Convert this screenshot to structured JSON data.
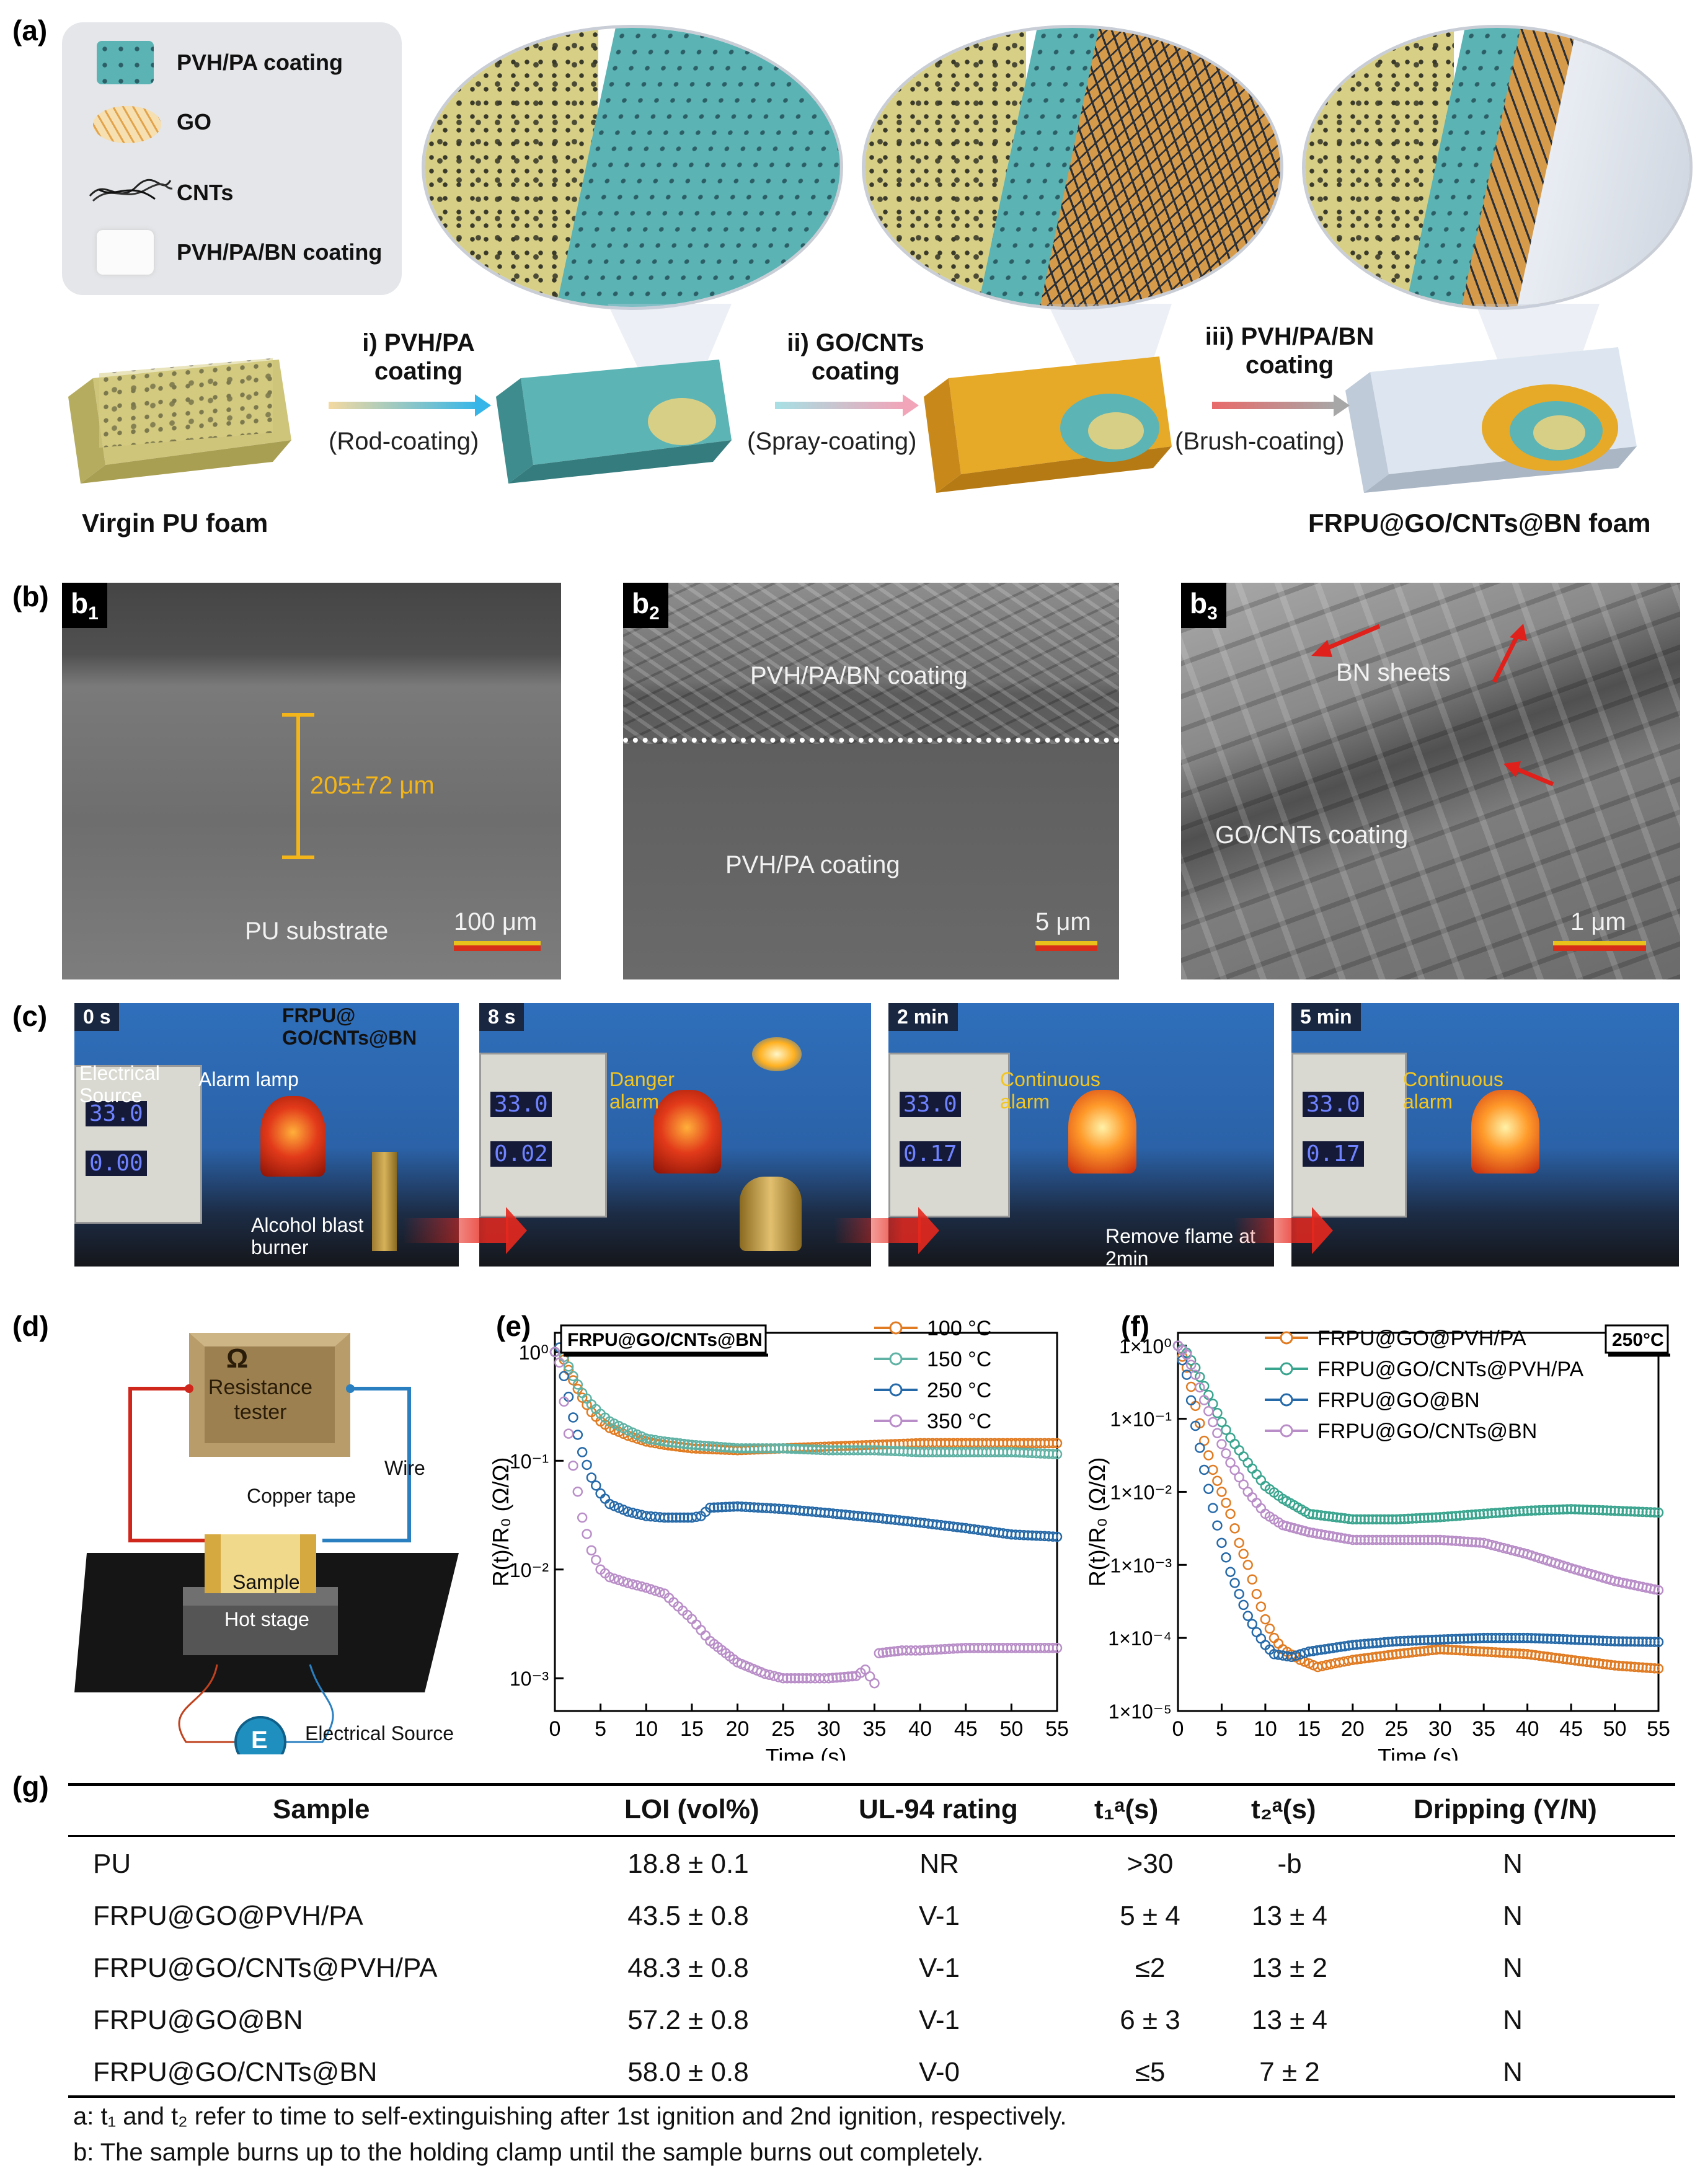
{
  "panel_labels": {
    "a": "(a)",
    "b": "(b)",
    "c": "(c)",
    "d": "(d)",
    "e": "(e)",
    "f": "(f)",
    "g": "(g)"
  },
  "panel_a": {
    "legend": [
      {
        "label": "PVH/PA coating",
        "icon": "teal-cube-icon"
      },
      {
        "label": "GO",
        "icon": "hexagon-sheet-icon"
      },
      {
        "label": "CNTs",
        "icon": "tube-bundle-icon"
      },
      {
        "label": "PVH/PA/BN coating",
        "icon": "white-cube-icon"
      }
    ],
    "steps": [
      {
        "title": "i) PVH/PA coating",
        "method": "(Rod-coating)"
      },
      {
        "title": "ii) GO/CNTs coating",
        "method": "(Spray-coating)"
      },
      {
        "title": "iii) PVH/PA/BN coating",
        "method": "(Brush-coating)"
      }
    ],
    "start_label": "Virgin PU foam",
    "end_label": "FRPU@GO/CNTs@BN foam",
    "colors": {
      "foam": "#d8cf86",
      "teal": "#5bb3b4",
      "gold": "#e7a928",
      "white": "#e3eaf2"
    }
  },
  "panel_b": [
    {
      "tag": "b",
      "sub": "1",
      "labels": [
        "205±72 μm",
        "PU substrate"
      ],
      "scale": "100 μm"
    },
    {
      "tag": "b",
      "sub": "2",
      "labels": [
        "PVH/PA/BN coating",
        "PVH/PA coating"
      ],
      "scale": "5 μm"
    },
    {
      "tag": "b",
      "sub": "3",
      "labels": [
        "BN sheets",
        "GO/CNTs coating"
      ],
      "scale": "1 μm"
    }
  ],
  "panel_c": {
    "frames": [
      {
        "time": "0 s",
        "labels": [
          "Electrical Source",
          "Alarm lamp",
          "Alcohol blast burner"
        ],
        "lcd": [
          "33.0",
          "0.00"
        ]
      },
      {
        "time": "8 s",
        "labels": [
          "Danger alarm"
        ],
        "lcd": [
          "33.0",
          "0.02"
        ]
      },
      {
        "time": "2 min",
        "labels": [
          "Continuous alarm",
          "Remove flame at 2min"
        ],
        "lcd": [
          "33.0",
          "0.17"
        ]
      },
      {
        "time": "5 min",
        "labels": [
          "Continuous alarm"
        ],
        "lcd": [
          "33.0",
          "0.17"
        ]
      }
    ],
    "sample_label": "FRPU@ GO/CNTs@BN"
  },
  "panel_d": {
    "tester": "Resistance tester",
    "omega": "Ω",
    "wire": "Wire",
    "copper": "Copper tape",
    "sample": "Sample",
    "stage": "Hot stage",
    "source_symbol": "E",
    "source": "Electrical Source"
  },
  "chart_data": [
    {
      "type": "scatter",
      "panel": "e",
      "title": "FRPU@GO/CNTs@BN",
      "xlabel": "Time (s)",
      "ylabel": "R(t)/R₀ (Ω/Ω)",
      "xlim": [
        0,
        55
      ],
      "ylim": [
        0.0005,
        1.5
      ],
      "yscale": "log",
      "xticks": [
        "0",
        "5",
        "10",
        "15",
        "20",
        "25",
        "30",
        "35",
        "40",
        "45",
        "50",
        "55"
      ],
      "yticks": [
        "10⁰",
        "10⁻¹",
        "10⁻²",
        "10⁻³"
      ],
      "legend_position": "top-right",
      "series": [
        {
          "name": "100 °C",
          "color": "#e07b22",
          "points": [
            [
              0,
              1.0
            ],
            [
              0.5,
              1.1
            ],
            [
              1,
              0.85
            ],
            [
              2,
              0.55
            ],
            [
              3,
              0.38
            ],
            [
              4,
              0.28
            ],
            [
              5,
              0.23
            ],
            [
              6,
              0.2
            ],
            [
              8,
              0.17
            ],
            [
              10,
              0.15
            ],
            [
              12,
              0.14
            ],
            [
              15,
              0.13
            ],
            [
              20,
              0.125
            ],
            [
              25,
              0.13
            ],
            [
              30,
              0.135
            ],
            [
              35,
              0.14
            ],
            [
              40,
              0.145
            ],
            [
              45,
              0.145
            ],
            [
              50,
              0.145
            ],
            [
              55,
              0.145
            ]
          ]
        },
        {
          "name": "150 °C",
          "color": "#5fb2a4",
          "points": [
            [
              0,
              1.0
            ],
            [
              0.5,
              1.1
            ],
            [
              1,
              0.9
            ],
            [
              2,
              0.6
            ],
            [
              3,
              0.42
            ],
            [
              4,
              0.33
            ],
            [
              5,
              0.27
            ],
            [
              6,
              0.23
            ],
            [
              8,
              0.19
            ],
            [
              10,
              0.16
            ],
            [
              12,
              0.15
            ],
            [
              15,
              0.14
            ],
            [
              20,
              0.13
            ],
            [
              25,
              0.13
            ],
            [
              30,
              0.125
            ],
            [
              35,
              0.125
            ],
            [
              40,
              0.12
            ],
            [
              45,
              0.12
            ],
            [
              50,
              0.12
            ],
            [
              55,
              0.115
            ]
          ]
        },
        {
          "name": "250 °C",
          "color": "#2569a8",
          "points": [
            [
              0,
              1.0
            ],
            [
              0.5,
              1.1
            ],
            [
              1,
              0.6
            ],
            [
              2,
              0.25
            ],
            [
              3,
              0.12
            ],
            [
              4,
              0.07
            ],
            [
              5,
              0.05
            ],
            [
              6,
              0.04
            ],
            [
              8,
              0.034
            ],
            [
              10,
              0.031
            ],
            [
              12,
              0.03
            ],
            [
              15,
              0.03
            ],
            [
              16,
              0.031
            ],
            [
              17,
              0.037
            ],
            [
              20,
              0.038
            ],
            [
              25,
              0.036
            ],
            [
              30,
              0.033
            ],
            [
              35,
              0.03
            ],
            [
              40,
              0.027
            ],
            [
              45,
              0.024
            ],
            [
              50,
              0.021
            ],
            [
              55,
              0.02
            ]
          ]
        },
        {
          "name": "350 °C",
          "color": "#b98ec8",
          "points": [
            [
              0,
              1.0
            ],
            [
              0.5,
              0.8
            ],
            [
              1,
              0.35
            ],
            [
              2,
              0.09
            ],
            [
              3,
              0.03
            ],
            [
              4,
              0.015
            ],
            [
              5,
              0.01
            ],
            [
              6,
              0.0085
            ],
            [
              8,
              0.0075
            ],
            [
              10,
              0.0068
            ],
            [
              12,
              0.006
            ],
            [
              13,
              0.005
            ],
            [
              15,
              0.0035
            ],
            [
              17,
              0.0022
            ],
            [
              20,
              0.0014
            ],
            [
              23,
              0.0011
            ],
            [
              25,
              0.001
            ],
            [
              28,
              0.001
            ],
            [
              30,
              0.001
            ],
            [
              33,
              0.00105
            ],
            [
              34,
              0.0012
            ],
            [
              35,
              0.0009
            ],
            [
              35.5,
              0.0017
            ],
            [
              38,
              0.0018
            ],
            [
              40,
              0.0018
            ],
            [
              45,
              0.0019
            ],
            [
              50,
              0.0019
            ],
            [
              55,
              0.0019
            ]
          ]
        }
      ]
    },
    {
      "type": "scatter",
      "panel": "f",
      "title": "250°C",
      "xlabel": "Time (s)",
      "ylabel": "R(t)/R₀ (Ω/Ω)",
      "xlim": [
        0,
        55
      ],
      "ylim": [
        1e-05,
        1.5
      ],
      "yscale": "log",
      "xticks": [
        "0",
        "5",
        "10",
        "15",
        "20",
        "25",
        "30",
        "35",
        "40",
        "45",
        "50",
        "55"
      ],
      "yticks": [
        "1×10⁰",
        "1×10⁻¹",
        "1×10⁻²",
        "1×10⁻³",
        "1×10⁻⁴",
        "1×10⁻⁵"
      ],
      "legend_position": "top-left",
      "series": [
        {
          "name": "FRPU@GO@PVH/PA",
          "color": "#e07b22",
          "points": [
            [
              0,
              1.0
            ],
            [
              1,
              0.5
            ],
            [
              2,
              0.15
            ],
            [
              3,
              0.05
            ],
            [
              4,
              0.02
            ],
            [
              5,
              0.01
            ],
            [
              6,
              0.005
            ],
            [
              7,
              0.002
            ],
            [
              8,
              0.001
            ],
            [
              9,
              0.0004
            ],
            [
              10,
              0.00018
            ],
            [
              11,
              0.0001
            ],
            [
              12,
              7e-05
            ],
            [
              14,
              5e-05
            ],
            [
              16,
              4e-05
            ],
            [
              18,
              4.5e-05
            ],
            [
              20,
              5e-05
            ],
            [
              25,
              6e-05
            ],
            [
              30,
              7e-05
            ],
            [
              35,
              6.5e-05
            ],
            [
              40,
              6e-05
            ],
            [
              45,
              5e-05
            ],
            [
              50,
              4.2e-05
            ],
            [
              55,
              3.8e-05
            ]
          ]
        },
        {
          "name": "FRPU@GO/CNTs@PVH/PA",
          "color": "#3aa58f",
          "points": [
            [
              0,
              1.0
            ],
            [
              1,
              0.8
            ],
            [
              2,
              0.5
            ],
            [
              3,
              0.28
            ],
            [
              4,
              0.16
            ],
            [
              5,
              0.09
            ],
            [
              6,
              0.055
            ],
            [
              8,
              0.025
            ],
            [
              10,
              0.012
            ],
            [
              12,
              0.008
            ],
            [
              15,
              0.005
            ],
            [
              20,
              0.0042
            ],
            [
              25,
              0.0042
            ],
            [
              30,
              0.0045
            ],
            [
              35,
              0.005
            ],
            [
              40,
              0.0055
            ],
            [
              45,
              0.0058
            ],
            [
              50,
              0.0055
            ],
            [
              55,
              0.0052
            ]
          ]
        },
        {
          "name": "FRPU@GO@BN",
          "color": "#2569a8",
          "points": [
            [
              0,
              1.0
            ],
            [
              1,
              0.4
            ],
            [
              2,
              0.08
            ],
            [
              3,
              0.02
            ],
            [
              4,
              0.006
            ],
            [
              5,
              0.002
            ],
            [
              6,
              0.0008
            ],
            [
              7,
              0.0004
            ],
            [
              8,
              0.0002
            ],
            [
              9,
              0.00012
            ],
            [
              10,
              8e-05
            ],
            [
              11,
              6e-05
            ],
            [
              13,
              5.5e-05
            ],
            [
              15,
              6.5e-05
            ],
            [
              20,
              8e-05
            ],
            [
              25,
              9e-05
            ],
            [
              30,
              9.5e-05
            ],
            [
              35,
              0.0001
            ],
            [
              40,
              0.0001
            ],
            [
              45,
              9.5e-05
            ],
            [
              50,
              9e-05
            ],
            [
              55,
              8.8e-05
            ]
          ]
        },
        {
          "name": "FRPU@GO/CNTs@BN",
          "color": "#b98ec8",
          "points": [
            [
              0,
              1.0
            ],
            [
              1,
              0.75
            ],
            [
              2,
              0.4
            ],
            [
              3,
              0.18
            ],
            [
              4,
              0.09
            ],
            [
              5,
              0.045
            ],
            [
              6,
              0.025
            ],
            [
              8,
              0.01
            ],
            [
              10,
              0.005
            ],
            [
              12,
              0.0035
            ],
            [
              15,
              0.0028
            ],
            [
              20,
              0.0022
            ],
            [
              25,
              0.0022
            ],
            [
              30,
              0.0022
            ],
            [
              35,
              0.002
            ],
            [
              40,
              0.0014
            ],
            [
              45,
              0.0009
            ],
            [
              50,
              0.0006
            ],
            [
              55,
              0.00045
            ]
          ]
        }
      ]
    }
  ],
  "panel_g": {
    "headers": [
      "Sample",
      "LOI (vol%)",
      "UL-94 rating",
      "t₁ᵃ(s)",
      "t₂ᵃ(s)",
      "Dripping (Y/N)"
    ],
    "rows": [
      [
        "PU",
        "18.8 ± 0.1",
        "NR",
        ">30",
        "-b",
        "N"
      ],
      [
        "FRPU@GO@PVH/PA",
        "43.5 ± 0.8",
        "V-1",
        "5 ± 4",
        "13 ± 4",
        "N"
      ],
      [
        "FRPU@GO/CNTs@PVH/PA",
        "48.3 ± 0.8",
        "V-1",
        "≤2",
        "13 ± 2",
        "N"
      ],
      [
        "FRPU@GO@BN",
        "57.2 ± 0.8",
        "V-1",
        "6 ± 3",
        "13 ± 4",
        "N"
      ],
      [
        "FRPU@GO/CNTs@BN",
        "58.0 ± 0.8",
        "V-0",
        "≤5",
        "7 ± 2",
        "N"
      ]
    ],
    "footnotes": [
      "a: t₁ and t₂ refer to time to self-extinguishing after 1st ignition and 2nd ignition, respectively.",
      "b: The sample burns up to the holding clamp until the sample burns out completely."
    ]
  }
}
